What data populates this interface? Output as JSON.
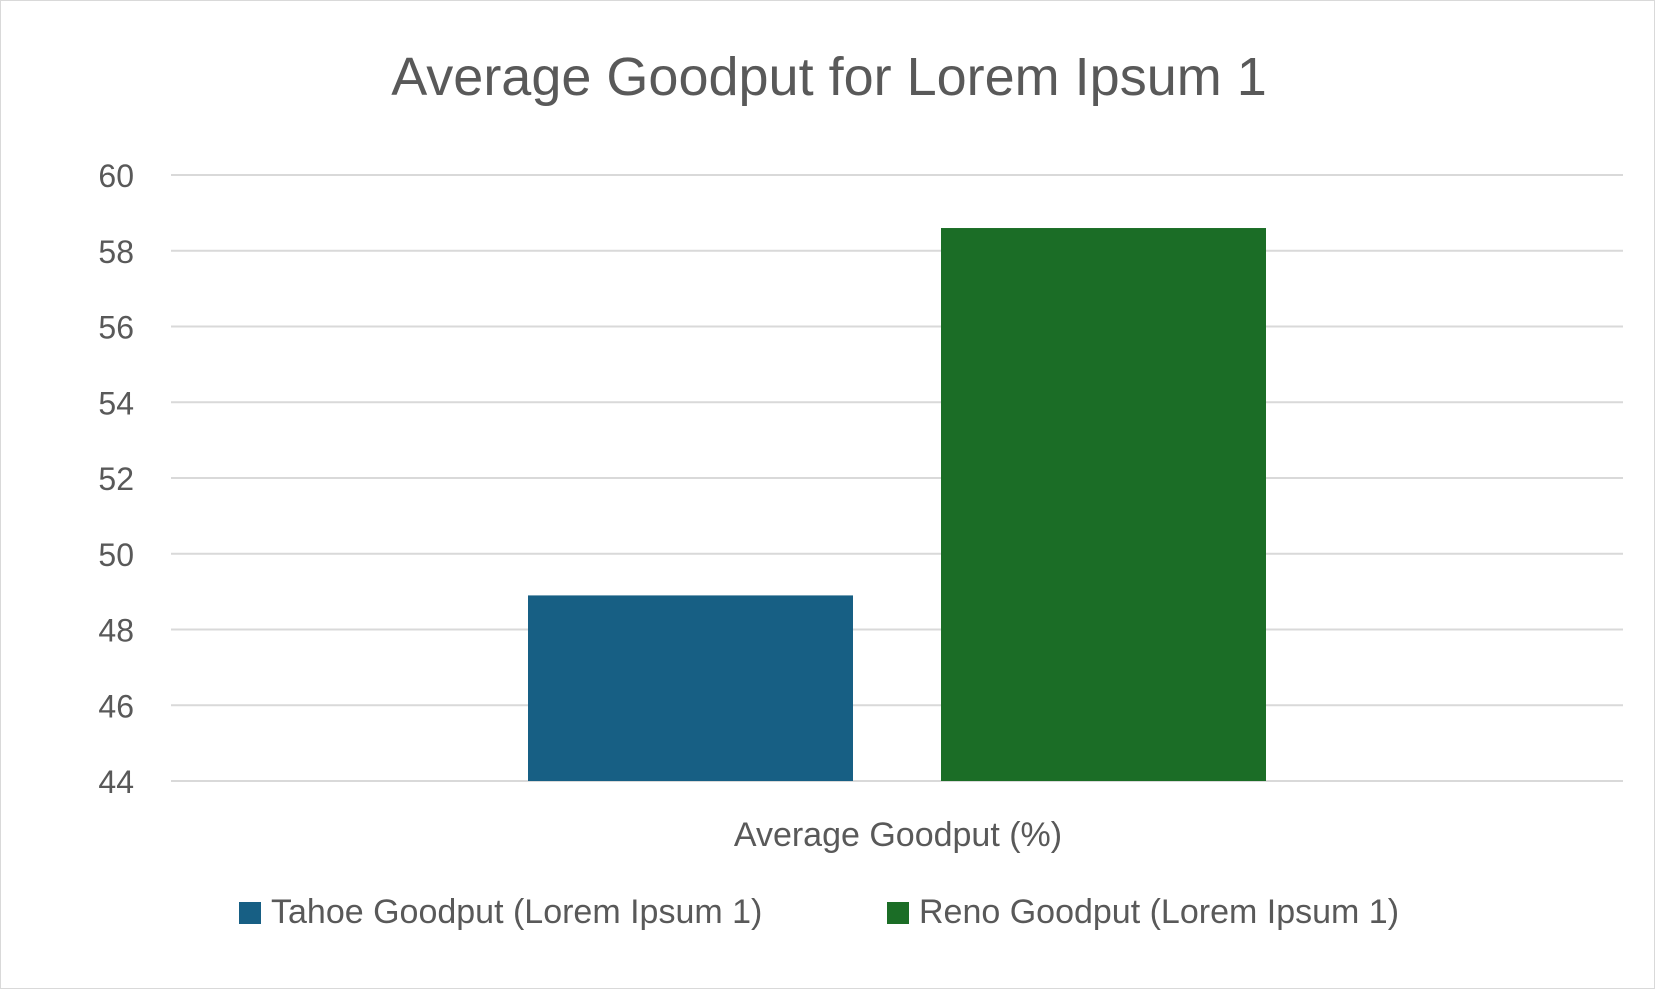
{
  "chart_data": {
    "type": "bar",
    "title": "Average Goodput for Lorem Ipsum 1",
    "xlabel": "Average Goodput (%)",
    "ylabel": "",
    "ylim": [
      44,
      60
    ],
    "yticks": [
      44,
      46,
      48,
      50,
      52,
      54,
      56,
      58,
      60
    ],
    "ytick_labels": [
      "44",
      "46",
      "48",
      "50",
      "52",
      "54",
      "56",
      "58",
      "60"
    ],
    "grid": true,
    "legend_position": "bottom",
    "categories": [
      "Average Goodput (%)"
    ],
    "series": [
      {
        "name": "Tahoe Goodput (Lorem Ipsum 1)",
        "values": [
          48.9
        ],
        "color": "#175f84"
      },
      {
        "name": "Reno Goodput (Lorem Ipsum 1)",
        "values": [
          58.6
        ],
        "color": "#1b6d26"
      }
    ]
  }
}
